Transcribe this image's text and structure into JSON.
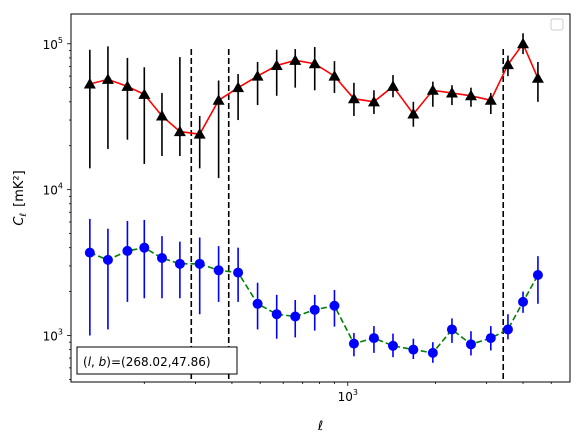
{
  "chart_data": {
    "type": "scatter",
    "xlabel": "ℓ",
    "ylabel": "C",
    "ylabel_sub": "ℓ",
    "ylabel_unit": "[mK²]",
    "x_scale": "log",
    "y_scale": "log",
    "xlim": [
      112,
      5800
    ],
    "ylim": [
      480,
      160000
    ],
    "x_major_ticks": [
      {
        "value": 1000,
        "base": "10",
        "exp": "3"
      }
    ],
    "y_major_ticks": [
      {
        "value": 1000,
        "base": "10",
        "exp": "3"
      },
      {
        "value": 10000,
        "base": "10",
        "exp": "4"
      },
      {
        "value": 100000,
        "base": "10",
        "exp": "5"
      }
    ],
    "vlines": [
      290,
      390,
      3420
    ],
    "vline_style": "dashed black",
    "legend": "top-right (empty)",
    "grid": false,
    "annotation": "(l, b)=(268.02,47.86)",
    "annotation_parts": {
      "prefix": "(",
      "l": "l",
      "comma": ", ",
      "b": "b",
      "suffix": ")=(268.02,47.86)"
    },
    "series": [
      {
        "marker": "triangle",
        "color": "#000000",
        "line_color": "#ff0000",
        "line_style": "solid",
        "error_color": "#000000",
        "x": [
          130,
          150,
          175,
          200,
          230,
          265,
          310,
          360,
          420,
          490,
          570,
          660,
          770,
          900,
          1050,
          1230,
          1430,
          1680,
          1960,
          2280,
          2650,
          3100,
          3550,
          4000,
          4500
        ],
        "y": [
          53000,
          57000,
          51000,
          45000,
          32000,
          25000,
          24000,
          41000,
          50000,
          60000,
          71000,
          77000,
          73000,
          60000,
          42000,
          40000,
          51000,
          33000,
          48000,
          46000,
          44000,
          41000,
          72000,
          100000,
          58000
        ],
        "yerr_low": [
          39000,
          38000,
          29000,
          30000,
          15000,
          8000,
          10000,
          29000,
          20000,
          22000,
          27000,
          27000,
          25000,
          14000,
          10000,
          7000,
          8000,
          6000,
          11000,
          8000,
          7000,
          8000,
          12000,
          15000,
          18000
        ],
        "yerr_high": [
          38000,
          39000,
          29000,
          24000,
          14000,
          56000,
          8000,
          15000,
          12000,
          15000,
          20000,
          15000,
          22000,
          16000,
          12000,
          8000,
          10000,
          7000,
          7000,
          6000,
          6000,
          5000,
          11000,
          18000,
          17000
        ]
      },
      {
        "marker": "circle",
        "color": "#0000ff",
        "line_color": "#008000",
        "line_style": "dashed",
        "error_color": "#0000ff",
        "x": [
          130,
          150,
          175,
          200,
          230,
          265,
          310,
          360,
          420,
          490,
          570,
          660,
          770,
          900,
          1050,
          1230,
          1430,
          1680,
          1960,
          2280,
          2650,
          3100,
          3550,
          4000,
          4500
        ],
        "y": [
          3700,
          3300,
          3800,
          4000,
          3400,
          3100,
          3100,
          2800,
          2700,
          1650,
          1400,
          1350,
          1500,
          1600,
          880,
          960,
          850,
          800,
          760,
          1100,
          870,
          960,
          1100,
          1700,
          2600
        ],
        "yerr_low": [
          2700,
          2200,
          2100,
          2200,
          1600,
          1300,
          1700,
          1100,
          1000,
          550,
          450,
          380,
          420,
          450,
          160,
          200,
          140,
          110,
          110,
          210,
          140,
          170,
          160,
          270,
          950
        ],
        "yerr_high": [
          2600,
          2100,
          2300,
          2200,
          1400,
          1300,
          1600,
          1300,
          1300,
          650,
          500,
          400,
          400,
          450,
          160,
          200,
          180,
          150,
          140,
          210,
          200,
          200,
          300,
          300,
          900
        ]
      }
    ]
  }
}
